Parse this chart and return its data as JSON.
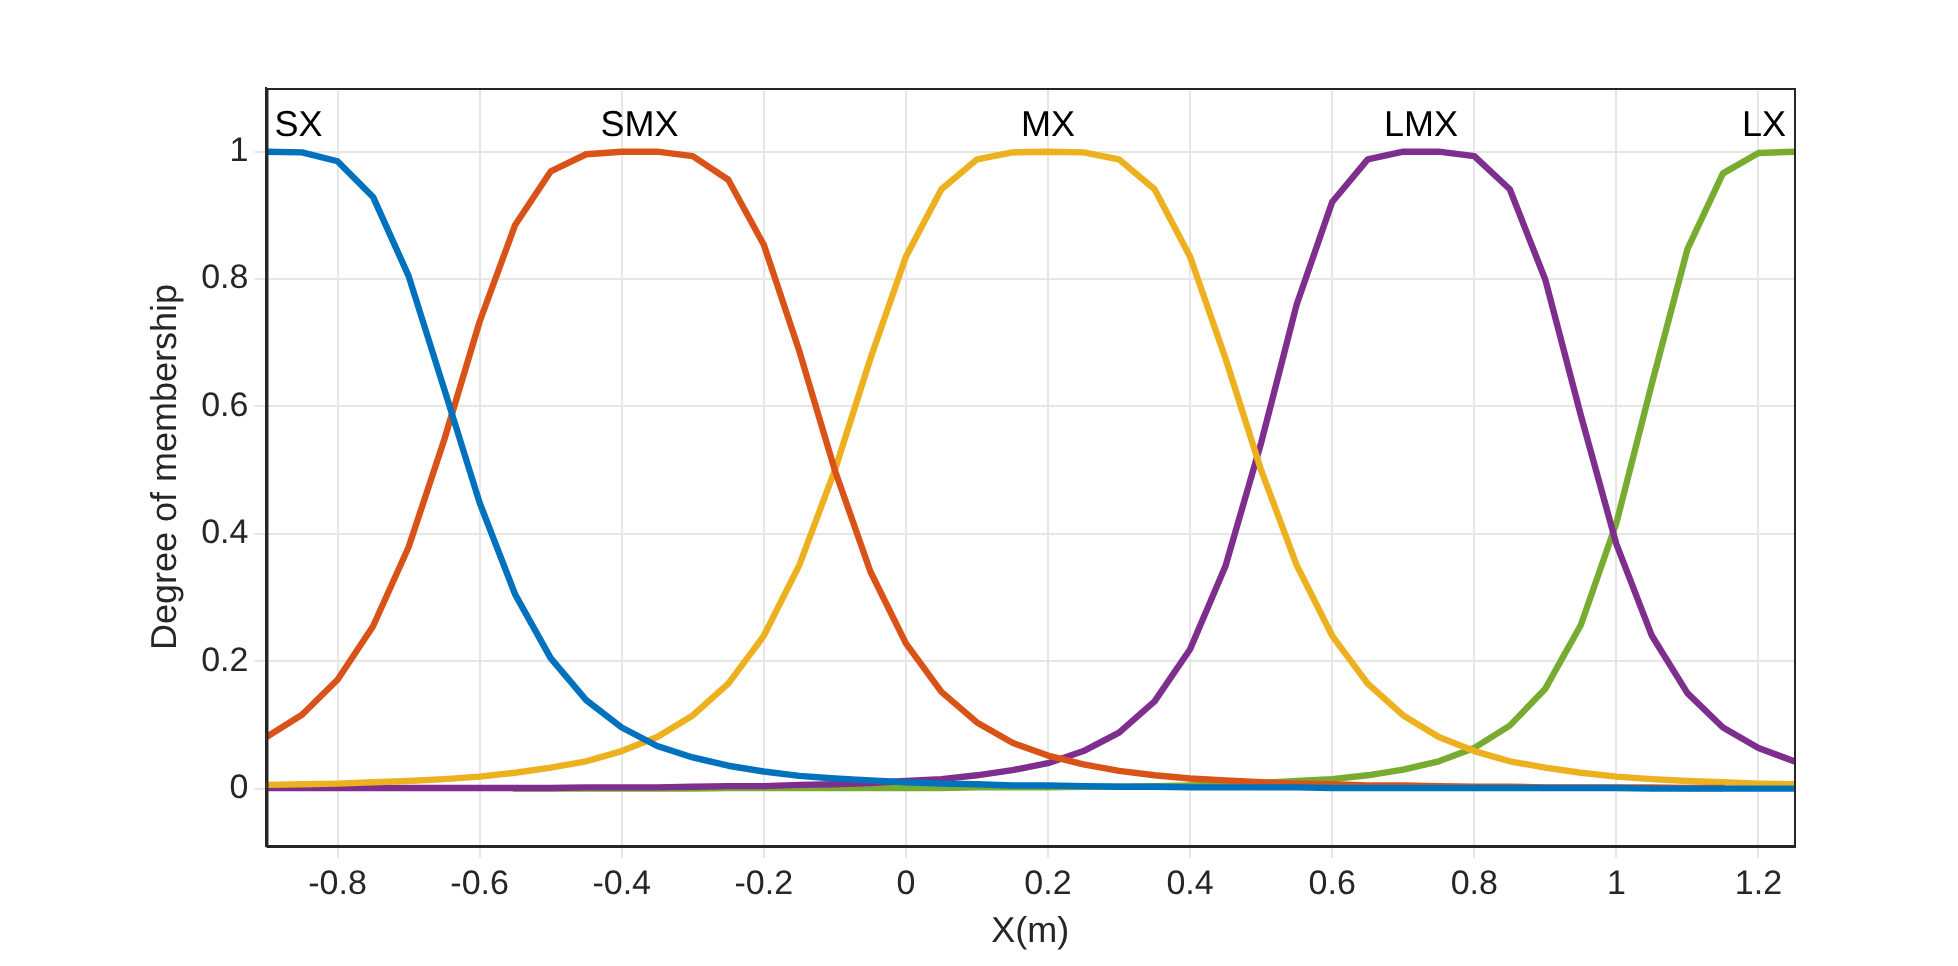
{
  "chart_data": {
    "type": "line",
    "xlabel": "X(m)",
    "ylabel": "Degree of membership",
    "x": [
      -0.9,
      -0.85,
      -0.8,
      -0.75,
      -0.7,
      -0.65,
      -0.6,
      -0.55,
      -0.5,
      -0.45,
      -0.4,
      -0.35,
      -0.3,
      -0.25,
      -0.2,
      -0.15,
      -0.1,
      -0.05,
      0,
      0.05,
      0.1,
      0.15,
      0.2,
      0.25,
      0.3,
      0.35,
      0.4,
      0.45,
      0.5,
      0.55,
      0.6,
      0.65,
      0.7,
      0.75,
      0.8,
      0.85,
      0.9,
      0.95,
      1.0,
      1.05,
      1.1,
      1.15,
      1.2,
      1.25
    ],
    "series": [
      {
        "name": "SX",
        "color": "#0072bd",
        "values": [
          1,
          0.999,
          0.985,
          0.929,
          0.805,
          0.628,
          0.449,
          0.305,
          0.205,
          0.139,
          0.096,
          0.067,
          0.049,
          0.036,
          0.027,
          0.02,
          0.016,
          0.013,
          0.01,
          0.008,
          0.007,
          0.005,
          0.005,
          0.004,
          0.003,
          0.003,
          0.002,
          0.002,
          0.002,
          0.002,
          0.001,
          0.001,
          0.001,
          0.001,
          0.001,
          0.001,
          0.001,
          0.001,
          0.001,
          0,
          0,
          0,
          0,
          0
        ]
      },
      {
        "name": "SMX",
        "color": "#d95319",
        "values": [
          0.081,
          0.116,
          0.171,
          0.255,
          0.379,
          0.547,
          0.733,
          0.885,
          0.969,
          0.996,
          1,
          1,
          0.993,
          0.956,
          0.854,
          0.687,
          0.5,
          0.341,
          0.228,
          0.152,
          0.104,
          0.072,
          0.052,
          0.038,
          0.028,
          0.021,
          0.016,
          0.013,
          0.01,
          0.008,
          0.007,
          0.005,
          0.005,
          0.004,
          0.003,
          0.003,
          0.002,
          0.002,
          0.002,
          0.002,
          0.001,
          0.001,
          null,
          null
        ]
      },
      {
        "name": "MX",
        "color": "#edb120",
        "values": [
          0.006,
          0.007,
          0.008,
          0.01,
          0.012,
          0.015,
          0.019,
          0.025,
          0.033,
          0.043,
          0.059,
          0.081,
          0.115,
          0.165,
          0.24,
          0.351,
          0.5,
          0.675,
          0.835,
          0.941,
          0.988,
          0.999,
          1,
          0.999,
          0.988,
          0.941,
          0.835,
          0.675,
          0.5,
          0.351,
          0.24,
          0.165,
          0.115,
          0.081,
          0.059,
          0.043,
          0.033,
          0.025,
          0.019,
          0.015,
          0.012,
          0.01,
          0.008,
          0.007
        ]
      },
      {
        "name": "LMX",
        "color": "#7e2f8e",
        "values": [
          0.001,
          0.001,
          0.001,
          0.001,
          0.001,
          0.001,
          0.001,
          0.001,
          0.001,
          0.002,
          0.002,
          0.002,
          0.003,
          0.004,
          0.004,
          0.006,
          0.007,
          0.009,
          0.012,
          0.015,
          0.021,
          0.029,
          0.04,
          0.059,
          0.088,
          0.137,
          0.219,
          0.35,
          0.543,
          0.76,
          0.921,
          0.988,
          1,
          1,
          0.993,
          0.941,
          0.799,
          0.586,
          0.384,
          0.24,
          0.15,
          0.096,
          0.064,
          0.043
        ]
      },
      {
        "name": "LX",
        "color": "#77ac30",
        "values": [
          null,
          null,
          null,
          null,
          null,
          null,
          null,
          0,
          0,
          0,
          0,
          0,
          0,
          0.001,
          0.001,
          0.001,
          0.001,
          0.001,
          0.001,
          0.001,
          0.002,
          0.002,
          0.002,
          0.003,
          0.003,
          0.004,
          0.005,
          0.007,
          0.009,
          0.012,
          0.015,
          0.021,
          0.03,
          0.043,
          0.064,
          0.099,
          0.157,
          0.257,
          0.417,
          0.636,
          0.847,
          0.966,
          0.998,
          1
        ]
      }
    ],
    "xlim": [
      -0.9,
      1.25
    ],
    "ylim": [
      -0.09,
      1.1
    ],
    "xticks": [
      -0.8,
      -0.6,
      -0.4,
      -0.2,
      0,
      0.2,
      0.4,
      0.6,
      0.8,
      1,
      1.2
    ],
    "yticks": [
      0,
      0.2,
      0.4,
      0.6,
      0.8,
      1
    ],
    "grid": true,
    "legend": false
  }
}
